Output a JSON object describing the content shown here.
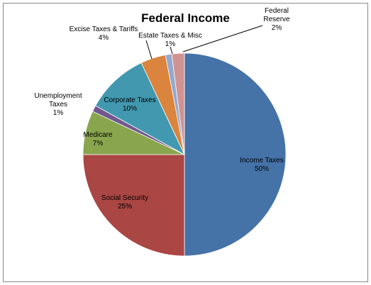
{
  "chart_data": {
    "type": "pie",
    "title": "Federal Income",
    "categories": [
      "Income Taxes",
      "Social Security",
      "Medicare",
      "Unemployment Taxes",
      "Corporate Taxes",
      "Excise Taxes & Tariffs",
      "Estate Taxes & Misc",
      "Federal Reserve"
    ],
    "values": [
      50,
      25,
      7,
      1,
      10,
      4,
      1,
      2
    ],
    "value_labels": [
      "50%",
      "25%",
      "7%",
      "1%",
      "10%",
      "4%",
      "1%",
      "2%"
    ],
    "colors": [
      "#4572A7",
      "#AA4643",
      "#89A54E",
      "#71588F",
      "#4198AF",
      "#DB843D",
      "#93A9CF",
      "#D19392"
    ]
  }
}
